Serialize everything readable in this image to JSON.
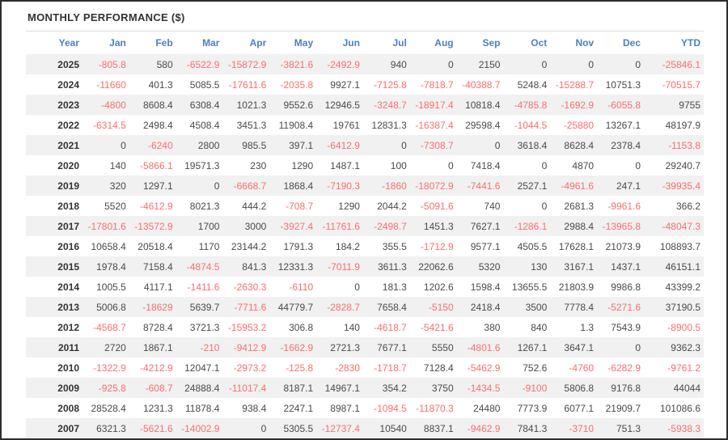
{
  "title": "MONTHLY PERFORMANCE ($)",
  "colors": {
    "header_text": "#4d7fbe",
    "negative": "#fb6e6e",
    "positive": "#4a4a4a",
    "stripe": "#f1f1f1",
    "title_text": "#333333",
    "frame_border": "#2e2e2e"
  },
  "table": {
    "columns": [
      "Year",
      "Jan",
      "Feb",
      "Mar",
      "Apr",
      "May",
      "Jun",
      "Jul",
      "Aug",
      "Sep",
      "Oct",
      "Nov",
      "Dec",
      "YTD"
    ],
    "rows": [
      {
        "year": "2025",
        "values": [
          "-805.8",
          "580",
          "-6522.9",
          "-15872.9",
          "-3821.6",
          "-2492.9",
          "940",
          "0",
          "2150",
          "0",
          "0",
          "0",
          "-25846.1"
        ]
      },
      {
        "year": "2024",
        "values": [
          "-11660",
          "401.3",
          "5085.5",
          "-17611.6",
          "-2035.8",
          "9927.1",
          "-7125.8",
          "-7818.7",
          "-40388.7",
          "5248.4",
          "-15288.7",
          "10751.3",
          "-70515.7"
        ]
      },
      {
        "year": "2023",
        "values": [
          "-4800",
          "8608.4",
          "6308.4",
          "1021.3",
          "9552.6",
          "12946.5",
          "-3248.7",
          "-18917.4",
          "10818.4",
          "-4785.8",
          "-1692.9",
          "-6055.8",
          "9755"
        ]
      },
      {
        "year": "2022",
        "values": [
          "-6314.5",
          "2498.4",
          "4508.4",
          "3451.3",
          "11908.4",
          "19761",
          "12831.3",
          "-16387.4",
          "29598.4",
          "-1044.5",
          "-25880",
          "13267.1",
          "48197.9"
        ]
      },
      {
        "year": "2021",
        "values": [
          "0",
          "-6240",
          "2800",
          "985.5",
          "397.1",
          "-6412.9",
          "0",
          "-7308.7",
          "0",
          "3618.4",
          "8628.4",
          "2378.4",
          "-1153.8"
        ]
      },
      {
        "year": "2020",
        "values": [
          "140",
          "-5866.1",
          "19571.3",
          "230",
          "1290",
          "1487.1",
          "100",
          "0",
          "7418.4",
          "0",
          "4870",
          "0",
          "29240.7"
        ]
      },
      {
        "year": "2019",
        "values": [
          "320",
          "1297.1",
          "0",
          "-6668.7",
          "1868.4",
          "-7190.3",
          "-1860",
          "-18072.9",
          "-7441.6",
          "2527.1",
          "-4961.6",
          "247.1",
          "-39935.4"
        ]
      },
      {
        "year": "2018",
        "values": [
          "5520",
          "-4612.9",
          "8021.3",
          "444.2",
          "-708.7",
          "1290",
          "2044.2",
          "-5091.6",
          "740",
          "0",
          "2681.3",
          "-9961.6",
          "366.2"
        ]
      },
      {
        "year": "2017",
        "values": [
          "-17801.6",
          "-13572.9",
          "1700",
          "3000",
          "-3927.4",
          "-11761.6",
          "-2498.7",
          "1451.3",
          "7627.1",
          "-1286.1",
          "2988.4",
          "-13965.8",
          "-48047.3"
        ]
      },
      {
        "year": "2016",
        "values": [
          "10658.4",
          "20518.4",
          "1170",
          "23144.2",
          "1791.3",
          "184.2",
          "355.5",
          "-1712.9",
          "9577.1",
          "4505.5",
          "17628.1",
          "21073.9",
          "108893.7"
        ]
      },
      {
        "year": "2015",
        "values": [
          "1978.4",
          "7158.4",
          "-4874.5",
          "841.3",
          "12331.3",
          "-7011.9",
          "3611.3",
          "22062.6",
          "5320",
          "130",
          "3167.1",
          "1437.1",
          "46151.1"
        ]
      },
      {
        "year": "2014",
        "values": [
          "1005.5",
          "4117.1",
          "-1411.6",
          "-2630.3",
          "-6110",
          "0",
          "181.3",
          "1202.6",
          "1598.4",
          "13655.5",
          "21803.9",
          "9986.8",
          "43399.2"
        ]
      },
      {
        "year": "2013",
        "values": [
          "5006.8",
          "-18629",
          "5639.7",
          "-7711.6",
          "44779.7",
          "-2828.7",
          "7658.4",
          "-5150",
          "2418.4",
          "3500",
          "7778.4",
          "-5271.6",
          "37190.5"
        ]
      },
      {
        "year": "2012",
        "values": [
          "-4568.7",
          "8728.4",
          "3721.3",
          "-15953.2",
          "306.8",
          "140",
          "-4618.7",
          "-5421.6",
          "380",
          "840",
          "1.3",
          "7543.9",
          "-8900.5"
        ]
      },
      {
        "year": "2011",
        "values": [
          "2720",
          "1867.1",
          "-210",
          "-9412.9",
          "-1662.9",
          "2721.3",
          "7677.1",
          "5550",
          "-4801.6",
          "1267.1",
          "3647.1",
          "0",
          "9362.3"
        ]
      },
      {
        "year": "2010",
        "values": [
          "-1322.9",
          "-4212.9",
          "12047.1",
          "-2973.2",
          "-125.8",
          "-2830",
          "-1718.7",
          "7128.4",
          "-5462.9",
          "752.6",
          "-4760",
          "-6282.9",
          "-9761.2"
        ]
      },
      {
        "year": "2009",
        "values": [
          "-925.8",
          "-608.7",
          "24888.4",
          "-11017.4",
          "8187.1",
          "14967.1",
          "354.2",
          "3750",
          "-1434.5",
          "-9100",
          "5806.8",
          "9176.8",
          "44044"
        ]
      },
      {
        "year": "2008",
        "values": [
          "28528.4",
          "1231.3",
          "11878.4",
          "938.4",
          "2247.1",
          "8987.1",
          "-1094.5",
          "-11870.3",
          "24480",
          "7773.9",
          "6077.1",
          "21909.7",
          "101086.6"
        ]
      },
      {
        "year": "2007",
        "values": [
          "6321.3",
          "-5621.6",
          "-14002.9",
          "0",
          "5305.5",
          "-12737.4",
          "10540",
          "8837.1",
          "-9462.9",
          "7841.3",
          "-3710",
          "751.3",
          "-5938.3"
        ]
      }
    ]
  }
}
